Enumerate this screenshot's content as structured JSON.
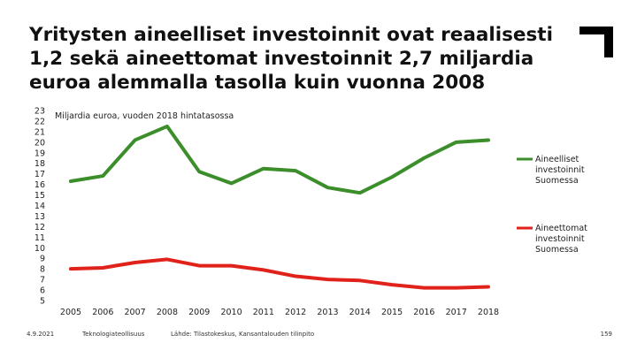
{
  "slide": {
    "title": "Yritysten aineelliset investoinnit ovat reaalisesti 1,2 sekä aineettomat investoinnit 2,7 miljardia euroa alemmalla tasolla kuin vuonna 2008",
    "footer": {
      "date": "4.9.2021",
      "org": "Teknologiateollisuus",
      "source": "Lähde: Tilastokeskus, Kansantalouden tilinpito",
      "page": "159"
    }
  },
  "colors": {
    "tangible": "#3b8e2a",
    "intangible": "#e0221b",
    "text": "#222222",
    "logo": "#000000"
  },
  "chart_data": {
    "type": "line",
    "title": "Miljardia euroa, vuoden 2018 hintatasossa",
    "xlabel": "",
    "ylabel": "",
    "x": [
      2005,
      2006,
      2007,
      2008,
      2009,
      2010,
      2011,
      2012,
      2013,
      2014,
      2015,
      2016,
      2017,
      2018
    ],
    "ylim": [
      5,
      23
    ],
    "yticks": [
      5,
      6,
      7,
      8,
      9,
      10,
      11,
      12,
      13,
      14,
      15,
      16,
      17,
      18,
      19,
      20,
      21,
      22,
      23
    ],
    "grid": false,
    "legend_position": "right",
    "series": [
      {
        "name": "Aineelliset investoinnit Suomessa",
        "legend_lines": [
          "Aineelliset",
          "investoinnit",
          "Suomessa"
        ],
        "color": "#3b8e2a",
        "values": [
          16.3,
          16.8,
          20.2,
          21.5,
          17.2,
          16.1,
          17.5,
          17.3,
          15.7,
          15.2,
          16.7,
          18.5,
          20.0,
          20.2
        ]
      },
      {
        "name": "Aineettomat investoinnit Suomessa",
        "legend_lines": [
          "Aineettomat",
          "investoinnit",
          "Suomessa"
        ],
        "color": "#e0221b",
        "values": [
          8.0,
          8.1,
          8.6,
          8.9,
          8.3,
          8.3,
          7.9,
          7.3,
          7.0,
          6.9,
          6.5,
          6.2,
          6.2,
          6.3
        ]
      }
    ]
  }
}
